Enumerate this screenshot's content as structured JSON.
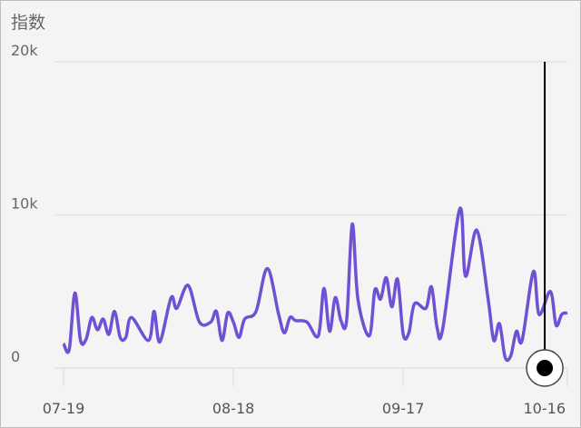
{
  "title": "指数",
  "chart_data": {
    "type": "line",
    "title": "指数",
    "xlabel": "",
    "ylabel": "",
    "ylim": [
      0,
      20000
    ],
    "y_ticks": [
      "0",
      "10k",
      "20k"
    ],
    "y_tick_values": [
      0,
      10000,
      20000
    ],
    "x_ticks": [
      "07-19",
      "08-18",
      "09-17",
      "10-16"
    ],
    "grid": "horizontal",
    "line_color": "#6f52d4",
    "cursor": {
      "x": "10-12",
      "value": 0
    },
    "series": [
      {
        "x": [
          "07-19",
          "07-20",
          "07-21",
          "07-22",
          "07-23",
          "07-24",
          "07-25",
          "07-26",
          "07-27",
          "07-28",
          "07-29",
          "07-30",
          "07-31",
          "08-03",
          "08-04",
          "08-05",
          "08-07",
          "08-08",
          "08-10",
          "08-12",
          "08-14",
          "08-15",
          "08-16",
          "08-17",
          "08-18",
          "08-19",
          "08-20",
          "08-22",
          "08-24",
          "08-26",
          "08-27",
          "08-28",
          "08-29",
          "08-31",
          "09-02",
          "09-03",
          "09-04",
          "09-05",
          "09-06",
          "09-07",
          "09-08",
          "09-09",
          "09-11",
          "09-12",
          "09-13",
          "09-14",
          "09-15",
          "09-16",
          "09-17",
          "09-18",
          "09-19",
          "09-21",
          "09-22",
          "09-23",
          "09-24",
          "09-27",
          "09-28",
          "09-30",
          "10-02",
          "10-03",
          "10-04",
          "10-05",
          "10-06",
          "10-07",
          "10-08",
          "10-10",
          "10-11",
          "10-13",
          "10-14",
          "10-15",
          "10-16"
        ],
        "values": [
          1600,
          1200,
          4900,
          1800,
          1900,
          3300,
          2500,
          3200,
          2200,
          3700,
          2000,
          2000,
          3300,
          1800,
          3700,
          1700,
          4600,
          3900,
          5400,
          3000,
          3000,
          3700,
          1800,
          3600,
          3000,
          2000,
          3200,
          3700,
          6500,
          3500,
          2300,
          3300,
          3100,
          3000,
          2100,
          5200,
          2400,
          4600,
          3100,
          3100,
          9400,
          4500,
          2100,
          5100,
          4500,
          5900,
          4000,
          5800,
          2200,
          2300,
          4200,
          3900,
          5300,
          2600,
          2600,
          10400,
          6000,
          9000,
          4500,
          1800,
          2900,
          700,
          800,
          2400,
          1800,
          6300,
          3500,
          5000,
          2800,
          3500,
          3600
        ]
      }
    ]
  }
}
